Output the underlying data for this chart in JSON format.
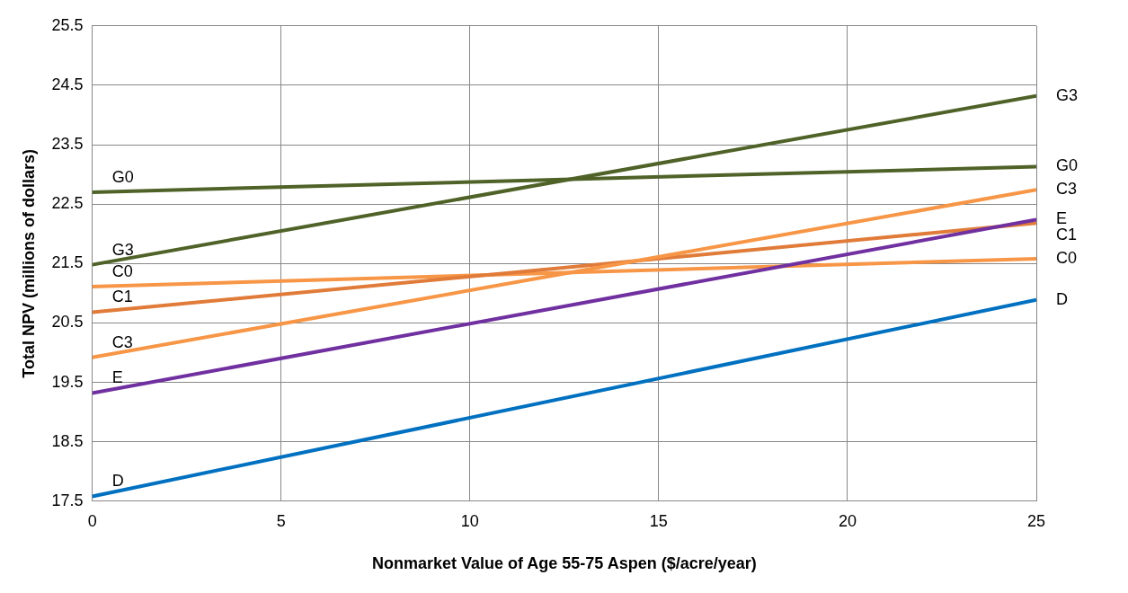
{
  "chart_data": {
    "type": "line",
    "xlabel": "Nonmarket Value of Age 55-75 Aspen ($/acre/year)",
    "ylabel": "Total NPV (millions of dollars)",
    "x": [
      0,
      25
    ],
    "series": [
      {
        "name": "G3",
        "color": "#4f6228",
        "values": [
          21.48,
          24.32
        ]
      },
      {
        "name": "G0",
        "color": "#4f6228",
        "values": [
          22.7,
          23.13
        ]
      },
      {
        "name": "C3",
        "color": "#f79646",
        "values": [
          19.92,
          22.74
        ]
      },
      {
        "name": "E",
        "color": "#7030a0",
        "values": [
          19.32,
          22.24
        ]
      },
      {
        "name": "C1",
        "color": "#e07b39",
        "values": [
          20.68,
          22.18
        ]
      },
      {
        "name": "C0",
        "color": "#f79646",
        "values": [
          21.11,
          21.58
        ]
      },
      {
        "name": "D",
        "color": "#0070c0",
        "values": [
          17.58,
          20.89
        ]
      }
    ],
    "xlim": [
      0,
      25
    ],
    "xticks": [
      0,
      5,
      10,
      15,
      20,
      25
    ],
    "ylim": [
      17.5,
      25.5
    ],
    "yticks": [
      17.5,
      18.5,
      19.5,
      20.5,
      21.5,
      22.5,
      23.5,
      24.5,
      25.5
    ],
    "grid": true,
    "legend": false,
    "marker": "none",
    "line_style": "solid"
  }
}
